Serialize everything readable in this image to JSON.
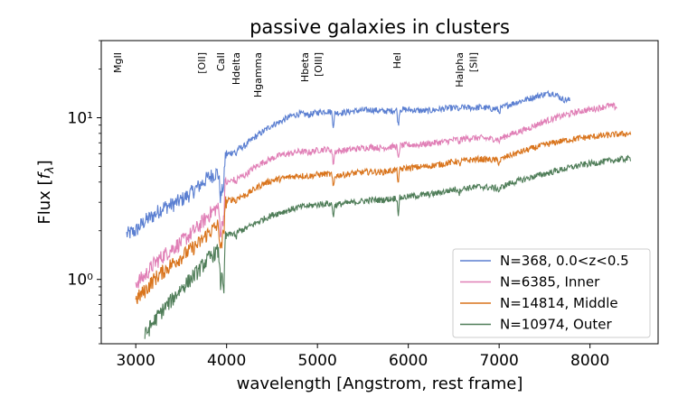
{
  "chart_data": {
    "type": "line",
    "title": "passive galaxies in clusters",
    "xlabel": "wavelength [Angstrom, rest frame]",
    "ylabel_prefix": "Flux [",
    "ylabel_var": "f",
    "ylabel_sub": "λ",
    "ylabel_suffix": "]",
    "xlim": [
      2620,
      8750
    ],
    "ylim": [
      0.4,
      30
    ],
    "yscale": "log",
    "x_ticks": [
      3000,
      4000,
      5000,
      6000,
      7000,
      8000
    ],
    "x_tick_labels": [
      "3000",
      "4000",
      "5000",
      "6000",
      "7000",
      "8000"
    ],
    "y_ticks": [
      1,
      10
    ],
    "y_tick_labels": [
      "10⁰",
      "10¹"
    ],
    "spectral_lines": [
      {
        "label": "MgII",
        "x": 2800
      },
      {
        "label": "[OII]",
        "x": 3727
      },
      {
        "label": "CaII",
        "x": 3934
      },
      {
        "label": "Hdelta",
        "x": 4102
      },
      {
        "label": "Hgamma",
        "x": 4340
      },
      {
        "label": "Hbeta",
        "x": 4861
      },
      {
        "label": "[OIII]",
        "x": 5007
      },
      {
        "label": "HeI",
        "x": 5876
      },
      {
        "label": "Halpha",
        "x": 6563
      },
      {
        "label": "[SII]",
        "x": 6716
      }
    ],
    "legend_position": "lower-right",
    "series": [
      {
        "name": "N=368, 0.0<z<0.5",
        "color": "#5b7fd1",
        "xmin": 2900,
        "xmax": 7780,
        "points": [
          [
            2900,
            1.9
          ],
          [
            3000,
            2.0
          ],
          [
            3100,
            2.3
          ],
          [
            3200,
            2.5
          ],
          [
            3300,
            2.8
          ],
          [
            3400,
            2.9
          ],
          [
            3500,
            3.1
          ],
          [
            3600,
            3.4
          ],
          [
            3700,
            3.8
          ],
          [
            3800,
            4.3
          ],
          [
            3900,
            4.6
          ],
          [
            3950,
            3.6
          ],
          [
            3980,
            5.8
          ],
          [
            4100,
            6.3
          ],
          [
            4200,
            6.7
          ],
          [
            4300,
            7.5
          ],
          [
            4400,
            8.2
          ],
          [
            4500,
            9.0
          ],
          [
            4600,
            9.5
          ],
          [
            4700,
            10.2
          ],
          [
            4800,
            10.6
          ],
          [
            4900,
            10.4
          ],
          [
            5000,
            10.8
          ],
          [
            5100,
            11.0
          ],
          [
            5200,
            10.7
          ],
          [
            5300,
            10.8
          ],
          [
            5400,
            11.0
          ],
          [
            5500,
            11.1
          ],
          [
            5600,
            11.2
          ],
          [
            5700,
            11.0
          ],
          [
            5800,
            11.0
          ],
          [
            5900,
            11.3
          ],
          [
            6000,
            11.2
          ],
          [
            6100,
            11.1
          ],
          [
            6200,
            11.0
          ],
          [
            6300,
            11.2
          ],
          [
            6400,
            11.4
          ],
          [
            6500,
            11.5
          ],
          [
            6600,
            11.6
          ],
          [
            6700,
            11.5
          ],
          [
            6800,
            11.6
          ],
          [
            6900,
            11.4
          ],
          [
            7000,
            11.3
          ],
          [
            7100,
            12.0
          ],
          [
            7200,
            12.5
          ],
          [
            7300,
            13.0
          ],
          [
            7400,
            13.5
          ],
          [
            7500,
            14.0
          ],
          [
            7600,
            14.2
          ],
          [
            7700,
            13.0
          ],
          [
            7780,
            12.8
          ]
        ],
        "dips": [
          [
            3934,
            0.8
          ],
          [
            3968,
            0.75
          ],
          [
            4102,
            0.92
          ],
          [
            5175,
            0.82
          ],
          [
            5890,
            0.78
          ],
          [
            6563,
            0.94
          ],
          [
            7000,
            0.95
          ]
        ]
      },
      {
        "name": "N=6385, Inner",
        "color": "#e07fb6",
        "xmin": 3000,
        "xmax": 8300,
        "points": [
          [
            3000,
            0.95
          ],
          [
            3100,
            1.05
          ],
          [
            3200,
            1.25
          ],
          [
            3300,
            1.4
          ],
          [
            3400,
            1.55
          ],
          [
            3500,
            1.7
          ],
          [
            3600,
            1.9
          ],
          [
            3700,
            2.15
          ],
          [
            3800,
            2.5
          ],
          [
            3900,
            2.8
          ],
          [
            3950,
            2.2
          ],
          [
            3980,
            3.9
          ],
          [
            4100,
            4.2
          ],
          [
            4200,
            4.4
          ],
          [
            4300,
            4.9
          ],
          [
            4400,
            5.3
          ],
          [
            4500,
            5.6
          ],
          [
            4600,
            5.9
          ],
          [
            4700,
            6.0
          ],
          [
            4800,
            6.2
          ],
          [
            4900,
            6.1
          ],
          [
            5000,
            6.3
          ],
          [
            5100,
            6.4
          ],
          [
            5200,
            6.2
          ],
          [
            5300,
            6.3
          ],
          [
            5400,
            6.4
          ],
          [
            5500,
            6.5
          ],
          [
            5600,
            6.6
          ],
          [
            5700,
            6.5
          ],
          [
            5800,
            6.6
          ],
          [
            5900,
            6.7
          ],
          [
            6000,
            6.8
          ],
          [
            6100,
            6.8
          ],
          [
            6200,
            6.9
          ],
          [
            6300,
            7.0
          ],
          [
            6400,
            7.1
          ],
          [
            6500,
            7.3
          ],
          [
            6600,
            7.4
          ],
          [
            6700,
            7.5
          ],
          [
            6800,
            7.5
          ],
          [
            6900,
            7.4
          ],
          [
            7000,
            7.4
          ],
          [
            7100,
            7.8
          ],
          [
            7300,
            8.5
          ],
          [
            7500,
            9.5
          ],
          [
            7700,
            10.3
          ],
          [
            7900,
            11.0
          ],
          [
            8100,
            11.5
          ],
          [
            8200,
            11.9
          ],
          [
            8300,
            11.6
          ]
        ],
        "dips": [
          [
            3934,
            0.8
          ],
          [
            3968,
            0.75
          ],
          [
            4102,
            0.92
          ],
          [
            5175,
            0.82
          ],
          [
            5890,
            0.8
          ],
          [
            6563,
            0.94
          ],
          [
            7000,
            0.96
          ]
        ]
      },
      {
        "name": "N=14814, Middle",
        "color": "#d9741c",
        "xmin": 3000,
        "xmax": 8450,
        "points": [
          [
            3000,
            0.75
          ],
          [
            3100,
            0.85
          ],
          [
            3200,
            1.0
          ],
          [
            3300,
            1.12
          ],
          [
            3400,
            1.25
          ],
          [
            3500,
            1.38
          ],
          [
            3600,
            1.52
          ],
          [
            3700,
            1.68
          ],
          [
            3800,
            1.95
          ],
          [
            3900,
            2.15
          ],
          [
            3950,
            1.7
          ],
          [
            3980,
            3.0
          ],
          [
            4100,
            3.2
          ],
          [
            4200,
            3.3
          ],
          [
            4300,
            3.6
          ],
          [
            4400,
            3.9
          ],
          [
            4500,
            4.1
          ],
          [
            4600,
            4.2
          ],
          [
            4700,
            4.3
          ],
          [
            4800,
            4.4
          ],
          [
            4900,
            4.35
          ],
          [
            5000,
            4.45
          ],
          [
            5100,
            4.5
          ],
          [
            5200,
            4.4
          ],
          [
            5300,
            4.45
          ],
          [
            5400,
            4.55
          ],
          [
            5500,
            4.6
          ],
          [
            5600,
            4.65
          ],
          [
            5700,
            4.6
          ],
          [
            5800,
            4.7
          ],
          [
            5900,
            4.8
          ],
          [
            6000,
            4.9
          ],
          [
            6100,
            4.95
          ],
          [
            6200,
            5.0
          ],
          [
            6300,
            5.1
          ],
          [
            6400,
            5.2
          ],
          [
            6500,
            5.35
          ],
          [
            6600,
            5.4
          ],
          [
            6700,
            5.5
          ],
          [
            6800,
            5.55
          ],
          [
            6900,
            5.5
          ],
          [
            7000,
            5.45
          ],
          [
            7100,
            5.8
          ],
          [
            7300,
            6.3
          ],
          [
            7500,
            6.8
          ],
          [
            7700,
            7.2
          ],
          [
            7900,
            7.5
          ],
          [
            8100,
            7.7
          ],
          [
            8300,
            7.9
          ],
          [
            8450,
            8.0
          ]
        ],
        "dips": [
          [
            3934,
            0.8
          ],
          [
            3968,
            0.75
          ],
          [
            4102,
            0.92
          ],
          [
            5175,
            0.82
          ],
          [
            5890,
            0.82
          ],
          [
            6563,
            0.94
          ],
          [
            7000,
            0.96
          ]
        ]
      },
      {
        "name": "N=10974, Outer",
        "color": "#4f7d58",
        "xmin": 3100,
        "xmax": 8450,
        "points": [
          [
            3100,
            0.45
          ],
          [
            3200,
            0.55
          ],
          [
            3300,
            0.65
          ],
          [
            3400,
            0.75
          ],
          [
            3500,
            0.88
          ],
          [
            3600,
            1.0
          ],
          [
            3700,
            1.15
          ],
          [
            3800,
            1.35
          ],
          [
            3900,
            1.5
          ],
          [
            3950,
            1.2
          ],
          [
            3980,
            1.85
          ],
          [
            4100,
            1.95
          ],
          [
            4200,
            2.05
          ],
          [
            4300,
            2.2
          ],
          [
            4400,
            2.35
          ],
          [
            4500,
            2.5
          ],
          [
            4600,
            2.6
          ],
          [
            4700,
            2.7
          ],
          [
            4800,
            2.8
          ],
          [
            4900,
            2.85
          ],
          [
            5000,
            2.9
          ],
          [
            5100,
            2.95
          ],
          [
            5200,
            2.9
          ],
          [
            5300,
            2.95
          ],
          [
            5400,
            3.0
          ],
          [
            5500,
            3.05
          ],
          [
            5600,
            3.1
          ],
          [
            5700,
            3.1
          ],
          [
            5800,
            3.15
          ],
          [
            5900,
            3.2
          ],
          [
            6000,
            3.25
          ],
          [
            6100,
            3.3
          ],
          [
            6200,
            3.35
          ],
          [
            6300,
            3.4
          ],
          [
            6400,
            3.5
          ],
          [
            6500,
            3.6
          ],
          [
            6600,
            3.65
          ],
          [
            6700,
            3.7
          ],
          [
            6800,
            3.75
          ],
          [
            6900,
            3.7
          ],
          [
            7000,
            3.65
          ],
          [
            7100,
            3.9
          ],
          [
            7300,
            4.2
          ],
          [
            7500,
            4.5
          ],
          [
            7700,
            4.8
          ],
          [
            7900,
            5.1
          ],
          [
            8100,
            5.3
          ],
          [
            8300,
            5.5
          ],
          [
            8450,
            5.6
          ]
        ],
        "dips": [
          [
            3934,
            0.7
          ],
          [
            3968,
            0.4
          ],
          [
            4102,
            0.9
          ],
          [
            5175,
            0.85
          ],
          [
            5890,
            0.8
          ],
          [
            6563,
            0.94
          ],
          [
            7000,
            0.96
          ]
        ]
      }
    ]
  }
}
